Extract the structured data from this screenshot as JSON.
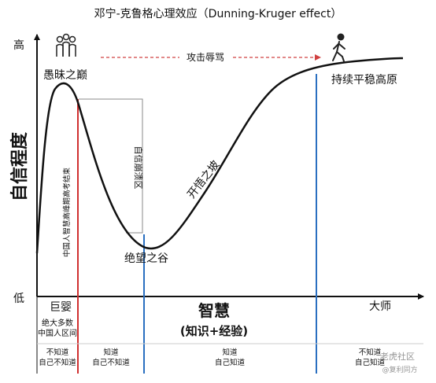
{
  "title": "邓宁-克鲁格心理效应（Dunning-Kruger effect）",
  "y_axis": {
    "label": "自信程度",
    "high": "高",
    "low": "低"
  },
  "x_axis": {
    "start": "巨婴",
    "main": "智慧",
    "sub": "(知识+经验)",
    "end": "大师"
  },
  "stages": {
    "peak": "愚昧之巅",
    "valley": "绝望之谷",
    "slope": "开悟之坡",
    "plateau": "持续平稳高原",
    "collapse": "自信崩溃区"
  },
  "annotations": {
    "attack": "攻击辱骂",
    "exam": "中国人智慧高峰期高考结束"
  },
  "bottom": {
    "majority": "绝大多数\n中国人区间",
    "cells": [
      "不知道\n自己不知道",
      "知道\n自己不知道",
      "知道\n自己知道",
      "不知道\n自己知道"
    ]
  },
  "watermark": {
    "main": "老虎社区",
    "sub": "@复利同方"
  },
  "icons": {
    "crowd": "people-group-icon",
    "walker": "walking-person-icon"
  },
  "colors": {
    "red_line": "#d03030",
    "blue_line": "#2a6fc0",
    "arrow": "#d04040",
    "curve": "#111111"
  }
}
